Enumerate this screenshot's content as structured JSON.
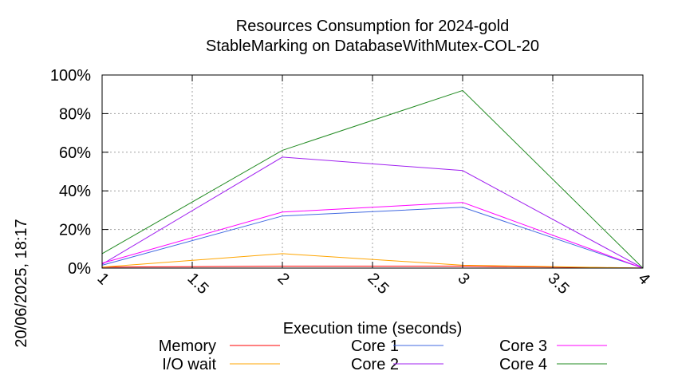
{
  "chart_data": {
    "type": "line",
    "title_line1": "Resources Consumption for 2024-gold",
    "title_line2": "StableMarking on DatabaseWithMutex-COL-20",
    "xlabel": "Execution time (seconds)",
    "ylabel": "",
    "side_label": "20/06/2025, 18:17",
    "xlim": [
      1,
      4
    ],
    "ylim": [
      0,
      100
    ],
    "x_ticks": [
      1,
      1.5,
      2,
      2.5,
      3,
      3.5,
      4
    ],
    "x_tick_labels": [
      "1",
      "1.5",
      "2",
      "2.5",
      "3",
      "3.5",
      "4"
    ],
    "y_ticks": [
      0,
      20,
      40,
      60,
      80,
      100
    ],
    "y_tick_labels": [
      "0%",
      "20%",
      "40%",
      "60%",
      "80%",
      "100%"
    ],
    "grid": true,
    "x": [
      1,
      2,
      3,
      4
    ],
    "series": [
      {
        "name": "Memory",
        "color": "#ff0000",
        "values": [
          0.5,
          1,
          1,
          0
        ]
      },
      {
        "name": "I/O wait",
        "color": "#ffa500",
        "values": [
          0.5,
          7.5,
          1.5,
          0
        ]
      },
      {
        "name": "Core 1",
        "color": "#4169e1",
        "values": [
          1.5,
          27,
          31.5,
          0
        ]
      },
      {
        "name": "Core 2",
        "color": "#a020f0",
        "values": [
          2,
          57.5,
          50.5,
          0
        ]
      },
      {
        "name": "Core 3",
        "color": "#ff00ff",
        "values": [
          2.5,
          29,
          34,
          0
        ]
      },
      {
        "name": "Core 4",
        "color": "#228b22",
        "values": [
          7.5,
          61,
          92,
          0
        ]
      }
    ],
    "legend_placement": "bottom"
  }
}
